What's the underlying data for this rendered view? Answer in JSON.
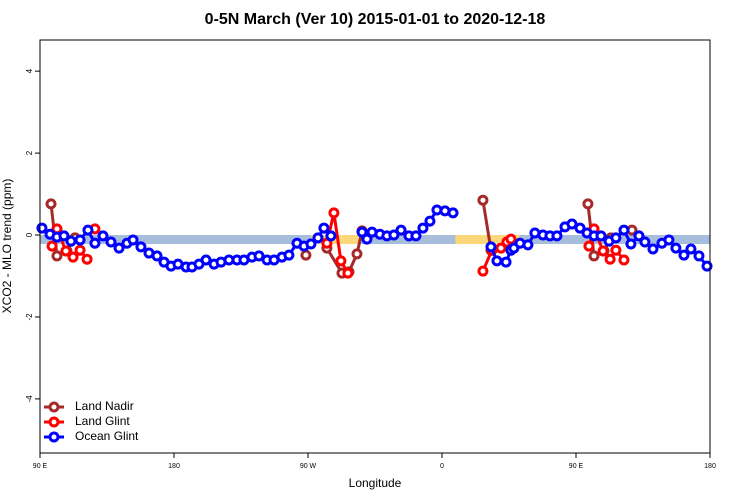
{
  "chart_data": {
    "type": "line",
    "title": "0-5N March (Ver 10)   2015-01-01 to 2020-12-18",
    "x_label": "Longitude",
    "y_label": "XCO2 - MLO trend (ppm)",
    "xlim": [
      90,
      540
    ],
    "ylim": [
      -5.32,
      4.76
    ],
    "xticks": [
      {
        "value": 90,
        "label": "90 E"
      },
      180,
      {
        "value": 270,
        "label": "90 W"
      },
      {
        "value": 360,
        "label": "0"
      },
      {
        "value": 450,
        "label": "90 E"
      },
      {
        "value": 540,
        "label": "180"
      }
    ],
    "yticks": [
      -4,
      -2,
      0,
      2,
      4
    ],
    "legend": "bottom-left",
    "band": {
      "ylim": [
        -0.22,
        0.0
      ],
      "segments": [
        {
          "xlim": [
            90,
            540
          ],
          "color": "#a6bddb"
        },
        {
          "xlim": [
            272,
            305
          ],
          "color": "#fdd87a"
        },
        {
          "xlim": [
            369,
            412
          ],
          "color": "#fdd87a"
        }
      ]
    },
    "series": [
      {
        "name": "Land Nadir",
        "color": "#a52a2a",
        "x": [
          97.4,
          101.4,
          108.1,
          113.5,
          null,
          268.6,
          null,
          282.7,
          292.8,
          297.5,
          302.9,
          306.3,
          null,
          387.5,
          392.9,
          null,
          458.0,
          462.1,
          468.8,
          473.5,
          null,
          487.6
        ],
        "values": [
          0.76,
          -0.51,
          -0.39,
          -0.07,
          null,
          -0.49,
          null,
          -0.32,
          -0.93,
          -0.9,
          -0.46,
          0.1,
          null,
          0.85,
          -0.37,
          null,
          0.76,
          -0.51,
          -0.39,
          -0.07,
          null,
          0.12
        ]
      },
      {
        "name": "Land Glint",
        "color": "#ff0000",
        "x": [
          98.1,
          101.4,
          107.4,
          112.2,
          116.9,
          121.6,
          null,
          126.9,
          null,
          282.7,
          287.4,
          292.1,
          296.8,
          null,
          387.5,
          393.5,
          399.6,
          403.6,
          406.3,
          null,
          458.7,
          462.1,
          468.2,
          472.9,
          476.8,
          482.2
        ],
        "values": [
          -0.27,
          0.15,
          -0.39,
          -0.54,
          -0.37,
          -0.59,
          null,
          0.15,
          null,
          -0.2,
          0.54,
          -0.63,
          -0.93,
          null,
          -0.88,
          -0.37,
          -0.32,
          -0.17,
          -0.1,
          null,
          -0.27,
          0.15,
          -0.39,
          -0.59,
          -0.37,
          -0.61
        ]
      },
      {
        "name": "Ocean Glint",
        "color": "#0000ff",
        "x": [
          91.3,
          96.7,
          101.4,
          106.1,
          110.8,
          116.9,
          122.2,
          126.9,
          132.3,
          137.7,
          143.1,
          148.4,
          152.5,
          157.8,
          163.2,
          168.6,
          173.3,
          178.0,
          182.7,
          188.1,
          192.1,
          196.8,
          201.5,
          206.9,
          211.6,
          216.9,
          222.3,
          227.0,
          232.4,
          237.1,
          242.5,
          247.2,
          252.5,
          257.2,
          262.6,
          267.3,
          272.0,
          276.7,
          280.7,
          285.4,
          null,
          306.3,
          309.6,
          313.0,
          318.3,
          323.0,
          327.7,
          332.5,
          337.8,
          342.5,
          347.2,
          351.9,
          356.6,
          362.0,
          367.4,
          null,
          392.9,
          396.9,
          403.0,
          406.3,
          408.3,
          412.4,
          417.7,
          422.4,
          427.8,
          432.5,
          437.2,
          442.6,
          447.3,
          452.7,
          457.4,
          462.1,
          466.8,
          472.2,
          476.8,
          482.2,
          486.9,
          492.3,
          496.3,
          501.7,
          507.7,
          512.4,
          517.1,
          522.5,
          527.2,
          532.6,
          538.0
        ],
        "values": [
          0.17,
          0.02,
          -0.05,
          -0.02,
          -0.15,
          -0.12,
          0.12,
          -0.2,
          -0.02,
          -0.17,
          -0.32,
          -0.2,
          -0.12,
          -0.29,
          -0.44,
          -0.51,
          -0.66,
          -0.76,
          -0.71,
          -0.78,
          -0.78,
          -0.71,
          -0.61,
          -0.71,
          -0.66,
          -0.61,
          -0.61,
          -0.61,
          -0.54,
          -0.51,
          -0.61,
          -0.61,
          -0.54,
          -0.49,
          -0.2,
          -0.27,
          -0.22,
          -0.07,
          0.17,
          -0.02,
          null,
          0.07,
          -0.1,
          0.07,
          0.02,
          -0.02,
          0,
          0.12,
          -0.02,
          -0.02,
          0.17,
          0.34,
          0.61,
          0.59,
          0.54,
          null,
          -0.29,
          -0.63,
          -0.66,
          -0.37,
          -0.32,
          -0.2,
          -0.24,
          0.05,
          0,
          -0.02,
          -0.02,
          0.2,
          0.27,
          0.17,
          0.05,
          -0.02,
          -0.02,
          -0.15,
          -0.07,
          0.12,
          -0.22,
          -0.02,
          -0.17,
          -0.34,
          -0.2,
          -0.12,
          -0.32,
          -0.49,
          -0.34,
          -0.51,
          -0.76
        ]
      }
    ]
  }
}
